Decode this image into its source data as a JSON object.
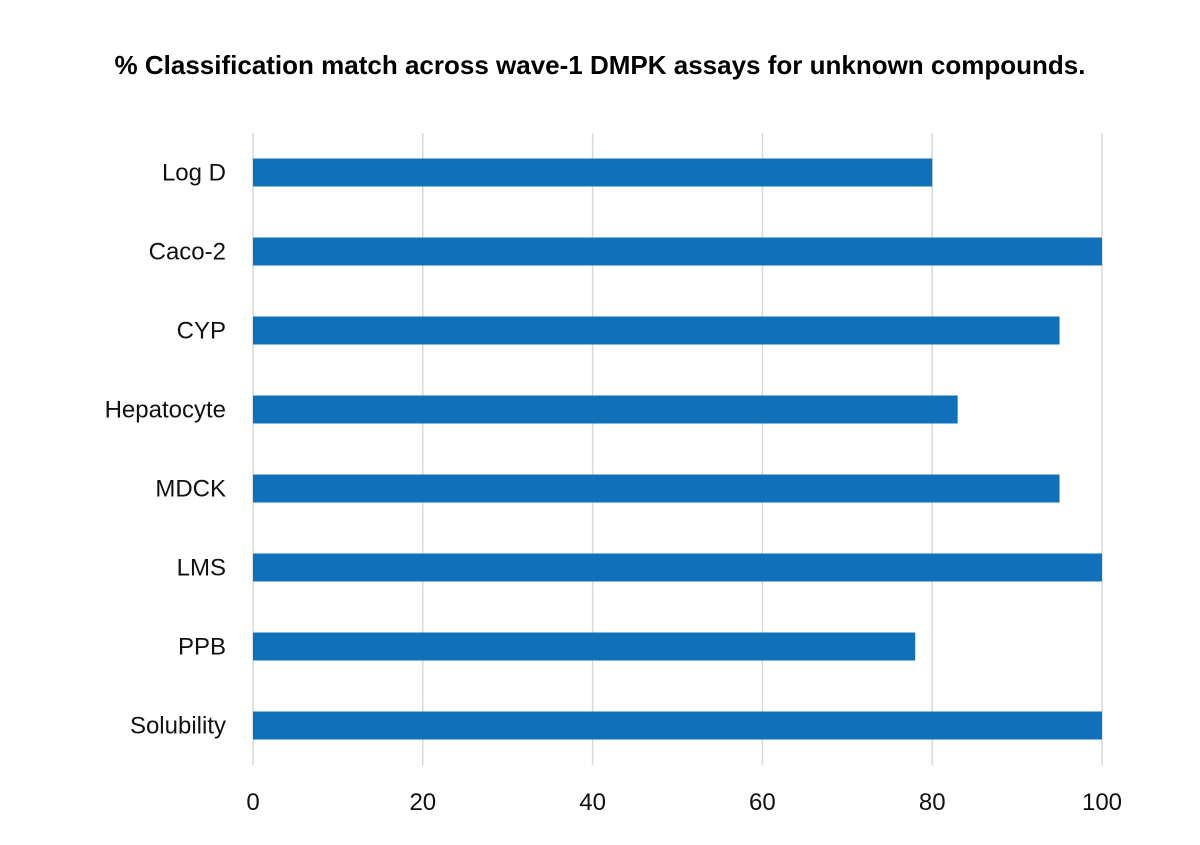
{
  "chart_data": {
    "type": "bar",
    "orientation": "horizontal",
    "title": "% Classification match across wave-1 DMPK assays for unknown compounds.",
    "categories": [
      "Log D",
      "Caco-2",
      "CYP",
      "Hepatocyte",
      "MDCK",
      "LMS",
      "PPB",
      "Solubility"
    ],
    "values": [
      80,
      100,
      95,
      83,
      95,
      100,
      78,
      100
    ],
    "xlim": [
      0,
      100
    ],
    "xticks": [
      "0",
      "20",
      "40",
      "60",
      "80",
      "100"
    ],
    "xlabel": "",
    "ylabel": "",
    "grid": "vertical",
    "legend": "none",
    "bar_color": "#1071BA",
    "grid_color": "#D9D9D9"
  }
}
